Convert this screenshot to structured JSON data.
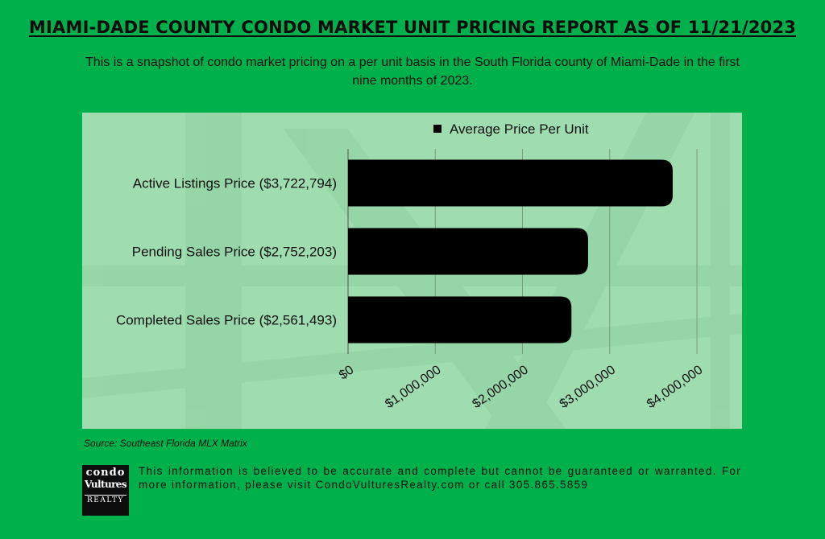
{
  "header": {
    "title": "MIAMI-DADE COUNTY CONDO MARKET UNIT PRICING REPORT AS OF 11/21/2023",
    "subtitle": "This is a snapshot of condo market pricing on a per unit basis in the South Florida county of Miami-Dade in the first nine months of 2023."
  },
  "chart_data": {
    "type": "bar",
    "orientation": "horizontal",
    "categories": [
      "Active Listings Price ($3,722,794)",
      "Pending Sales Price ($2,752,203)",
      "Completed Sales Price ($2,561,493)"
    ],
    "series": [
      {
        "name": "Average Price Per Unit",
        "values": [
          3722794,
          2752203,
          2561493
        ],
        "color": "#000000"
      }
    ],
    "xlim": [
      0,
      4000000
    ],
    "xticks": [
      0,
      1000000,
      2000000,
      3000000,
      4000000
    ],
    "xtick_labels": [
      "$0",
      "$1,000,000",
      "$2,000,000",
      "$3,000,000",
      "$4,000,000"
    ],
    "legend_position": "top",
    "grid": "vertical",
    "panel_color": "#9fdcaf"
  },
  "source": "Source: Southeast Florida MLX Matrix",
  "logo": {
    "line1": "condo",
    "line2": "Vultures",
    "line3": "REALTY"
  },
  "disclaimer": "This information is believed to be accurate and complete but cannot be guaranteed or warranted. For more information, please visit CondoVulturesRealty.com or call 305.865.5859",
  "colors": {
    "background": "#00b04a",
    "bar": "#000000",
    "text": "#111111"
  }
}
